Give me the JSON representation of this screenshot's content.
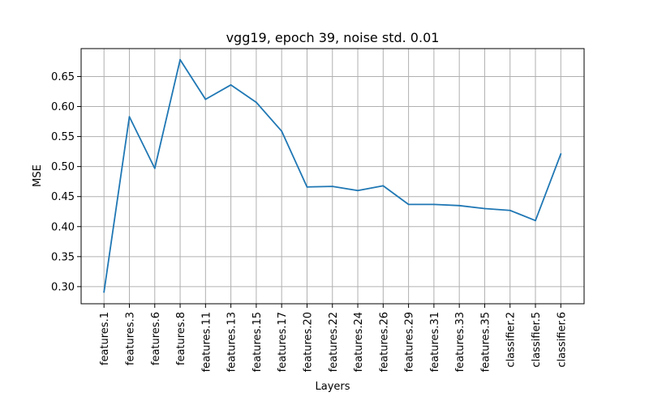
{
  "chart_data": {
    "type": "line",
    "title": "vgg19, epoch 39, noise std. 0.01",
    "xlabel": "Layers",
    "ylabel": "MSE",
    "categories": [
      "features.1",
      "features.3",
      "features.6",
      "features.8",
      "features.11",
      "features.13",
      "features.15",
      "features.17",
      "features.20",
      "features.22",
      "features.24",
      "features.26",
      "features.29",
      "features.31",
      "features.33",
      "features.35",
      "classifier.2",
      "classifier.5",
      "classifier.6"
    ],
    "series": [
      {
        "values": [
          0.291,
          0.583,
          0.497,
          0.678,
          0.612,
          0.636,
          0.607,
          0.559,
          0.466,
          0.467,
          0.46,
          0.468,
          0.437,
          0.437,
          0.435,
          0.43,
          0.427,
          0.41,
          0.521
        ],
        "color": "#1f77b4"
      }
    ],
    "ylim": [
      0.2715,
      0.6965
    ],
    "yticks": [
      0.3,
      0.35,
      0.4,
      0.45,
      0.5,
      0.55,
      0.6,
      0.65
    ],
    "ytick_labels": [
      "0.30",
      "0.35",
      "0.40",
      "0.45",
      "0.50",
      "0.55",
      "0.60",
      "0.65"
    ],
    "grid": true,
    "legend": "none"
  }
}
